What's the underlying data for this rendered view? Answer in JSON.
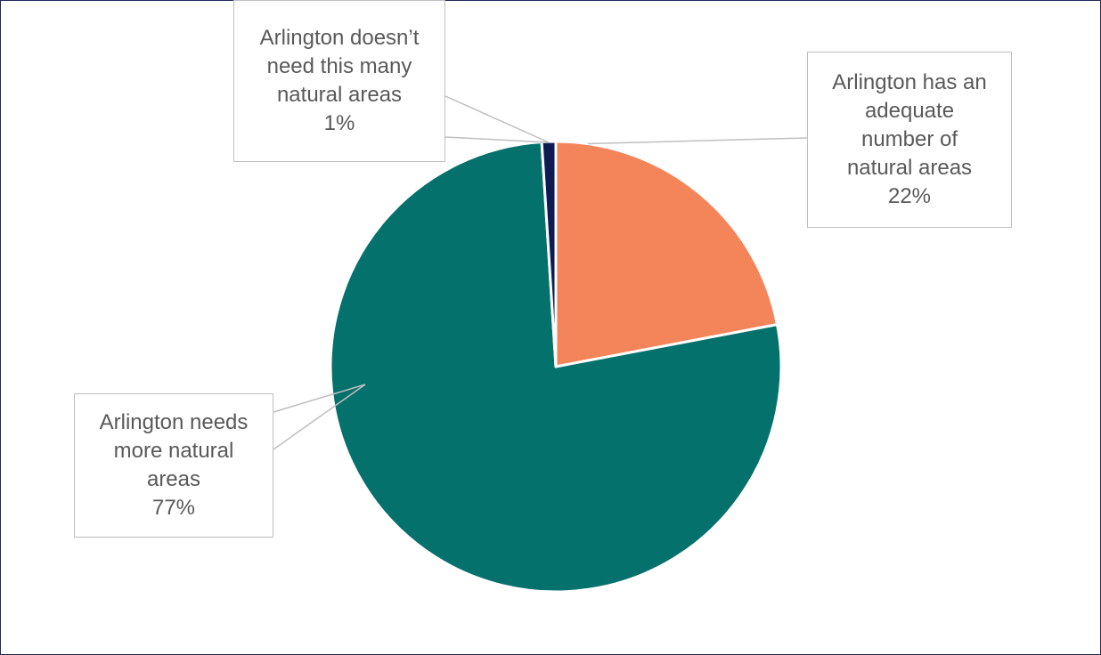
{
  "chart_data": {
    "type": "pie",
    "title": "",
    "slices": [
      {
        "label": "Arlington has an adequate number of natural areas",
        "value": 22,
        "value_label": "22%",
        "color": "#F4845A"
      },
      {
        "label": "Arlington needs more natural areas",
        "value": 77,
        "value_label": "77%",
        "color": "#05716C"
      },
      {
        "label": "Arlington doesn’t need this many natural areas",
        "value": 1,
        "value_label": "1%",
        "color": "#0D1B52"
      }
    ],
    "legend": "none",
    "data_labels": "callouts"
  },
  "labels": {
    "adequate": {
      "text": "Arlington has an\nadequate\nnumber of\nnatural areas",
      "pct": "22%"
    },
    "more": {
      "text": "Arlington needs\nmore natural\nareas",
      "pct": "77%"
    },
    "fewer": {
      "text": "Arlington doesn’t\nneed this many\nnatural areas",
      "pct": "1%"
    }
  },
  "colors": {
    "frame_border": "#1f2a5a",
    "leader_line": "#bfbfbf",
    "slice_separator": "#ffffff"
  }
}
